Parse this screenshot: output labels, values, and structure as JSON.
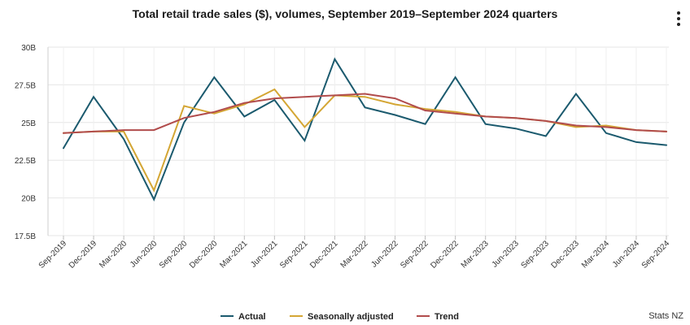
{
  "chart_data": {
    "type": "line",
    "title": "Total retail trade sales ($), volumes, September 2019–September 2024 quarters",
    "xlabel": "",
    "ylabel": "",
    "ylim": [
      17.5,
      30
    ],
    "y_ticks": [
      17.5,
      20,
      22.5,
      25,
      27.5,
      30
    ],
    "y_tick_labels": [
      "17.5B",
      "20B",
      "22.5B",
      "25B",
      "27.5B",
      "30B"
    ],
    "grid": true,
    "legend_position": "bottom-center",
    "categories": [
      "Sep-2019",
      "Dec-2019",
      "Mar-2020",
      "Jun-2020",
      "Sep-2020",
      "Dec-2020",
      "Mar-2021",
      "Jun-2021",
      "Sep-2021",
      "Dec-2021",
      "Mar-2022",
      "Jun-2022",
      "Sep-2022",
      "Dec-2022",
      "Mar-2023",
      "Jun-2023",
      "Sep-2023",
      "Dec-2023",
      "Mar-2024",
      "Jun-2024",
      "Sep-2024"
    ],
    "series": [
      {
        "name": "Actual",
        "color": "#1b5a6e",
        "values": [
          23.3,
          26.7,
          23.9,
          19.9,
          25.0,
          28.0,
          25.4,
          26.5,
          23.8,
          29.2,
          26.0,
          25.5,
          24.9,
          28.0,
          24.9,
          24.6,
          24.1,
          26.9,
          24.3,
          23.7,
          23.5
        ]
      },
      {
        "name": "Seasonally adjusted",
        "color": "#d4a634",
        "values": [
          24.3,
          24.4,
          24.4,
          20.5,
          26.1,
          25.6,
          26.2,
          27.2,
          24.7,
          26.8,
          26.7,
          26.2,
          25.9,
          25.7,
          25.4,
          25.3,
          25.1,
          24.7,
          24.8,
          24.5,
          24.4
        ]
      },
      {
        "name": "Trend",
        "color": "#b14c4c",
        "values": [
          24.3,
          24.4,
          24.5,
          24.5,
          25.3,
          25.7,
          26.3,
          26.6,
          26.7,
          26.8,
          26.9,
          26.6,
          25.8,
          25.6,
          25.4,
          25.3,
          25.1,
          24.8,
          24.7,
          24.5,
          24.4
        ]
      }
    ]
  },
  "menu": {
    "icon": "more-vertical-icon"
  },
  "source": "Stats NZ"
}
